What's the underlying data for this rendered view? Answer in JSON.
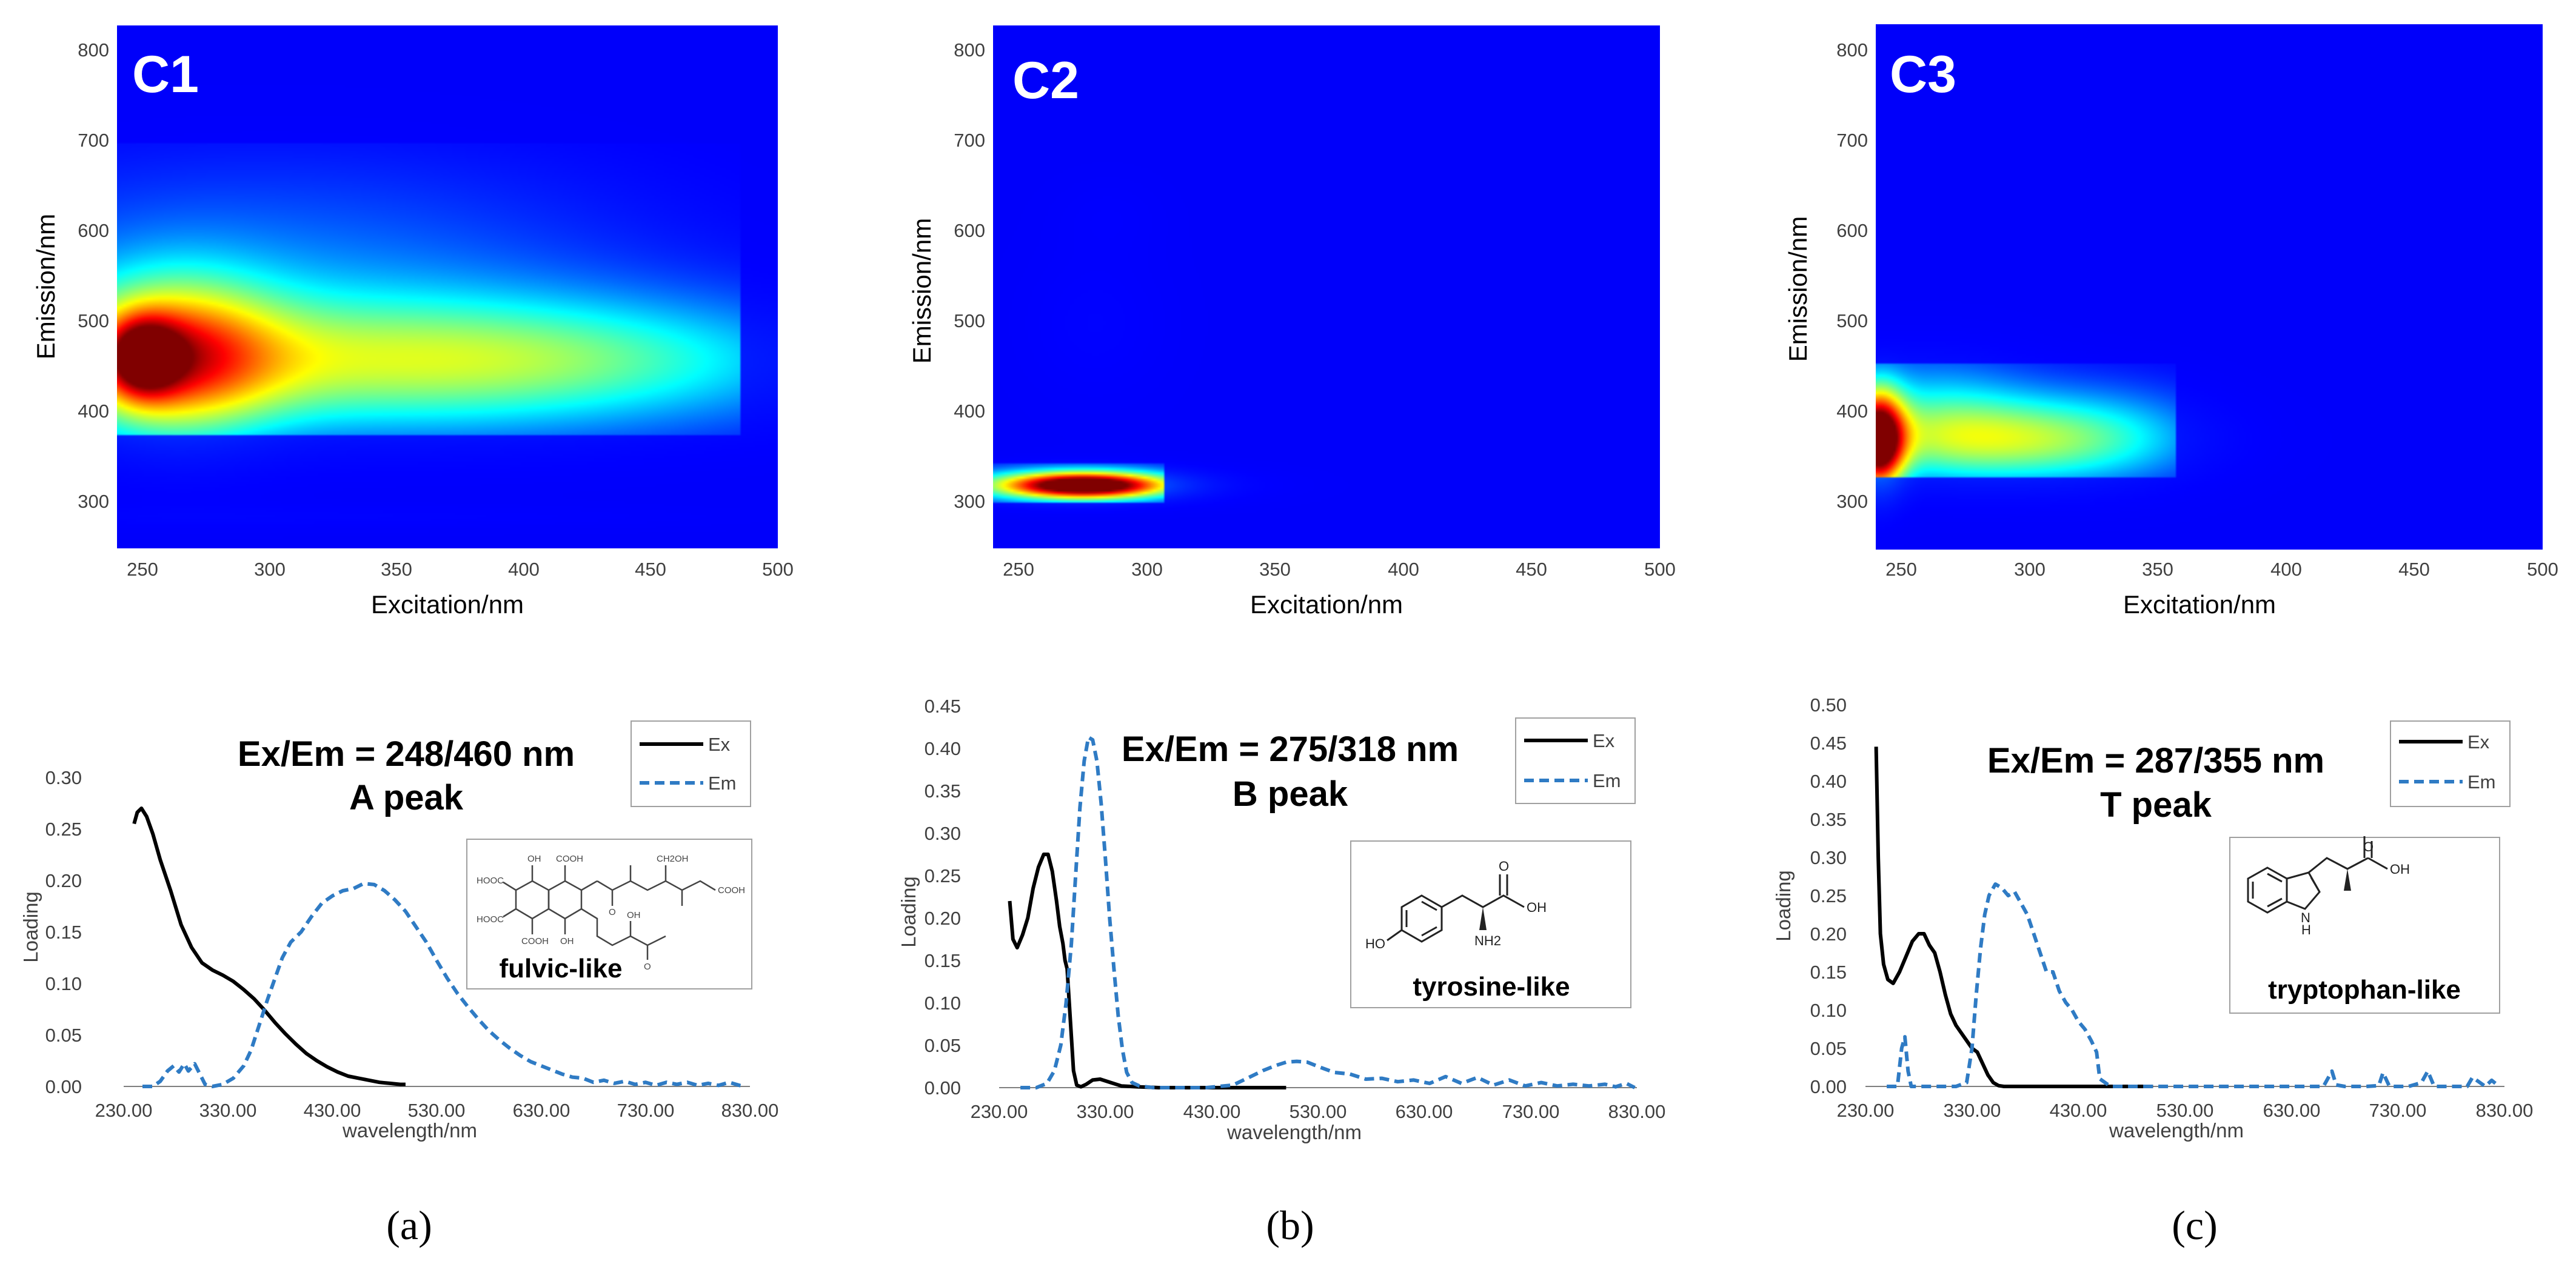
{
  "colors": {
    "heat_background": "#00008f",
    "ex_line": "#000000",
    "em_line": "#2f7bc4",
    "axis": "#7f7f7f",
    "text": "#000000",
    "tick_text": "#404040"
  },
  "panels": [
    {
      "id": "a",
      "caption": "(a)",
      "contour": {
        "label": "C1",
        "xlabel": "Excitation/nm",
        "ylabel": "Emission/nm",
        "xlim": [
          240,
          500
        ],
        "ylim": [
          250,
          830
        ],
        "xticks": [
          250,
          300,
          350,
          400,
          450,
          500
        ],
        "yticks": [
          300,
          400,
          500,
          600,
          700,
          800
        ],
        "blobs": [
          {
            "ex": 340,
            "em": 455,
            "sx": 105,
            "sy": 55,
            "amp": 0.42
          },
          {
            "ex": 420,
            "em": 460,
            "sx": 70,
            "sy": 42,
            "amp": 0.12
          },
          {
            "ex": 262,
            "em": 462,
            "sx": 28,
            "sy": 62,
            "amp": 0.55
          },
          {
            "ex": 250,
            "em": 462,
            "sx": 10,
            "sy": 30,
            "amp": 0.5
          },
          {
            "ex": 300,
            "em": 560,
            "sx": 90,
            "sy": 80,
            "amp": 0.12
          },
          {
            "ex": 300,
            "em": 285,
            "sx": 120,
            "sy": 10,
            "amp": 0.05
          }
        ],
        "em_cut": [
          375,
          700
        ],
        "ex_cut": 485
      },
      "loading": {
        "title_line1": "Ex/Em = 248/460 nm",
        "title_line2": "A peak",
        "structure_label": "fulvic-like",
        "structure_subs": [
          "OH",
          "COOH",
          "CH2OH",
          "HOOC",
          "HOOC",
          "COOH",
          "COOH",
          "OH",
          "OH",
          "O",
          "O"
        ],
        "xlabel": "wavelength/nm",
        "ylabel": "Loading",
        "xlim": [
          230,
          830
        ],
        "ylim": [
          0,
          0.3
        ],
        "xticks": [
          "230.00",
          "330.00",
          "430.00",
          "530.00",
          "630.00",
          "730.00",
          "830.00"
        ],
        "yticks": [
          "0.00",
          "0.05",
          "0.10",
          "0.15",
          "0.20",
          "0.25",
          "0.30"
        ],
        "legend": [
          "Ex",
          "Em"
        ],
        "chart_data": {
          "type": "line",
          "series": [
            {
              "name": "Ex",
              "x": [
                240,
                243,
                247,
                252,
                258,
                265,
                275,
                285,
                295,
                305,
                315,
                325,
                335,
                345,
                355,
                365,
                375,
                385,
                395,
                405,
                415,
                425,
                435,
                445,
                455,
                465,
                475,
                485,
                495,
                500
              ],
              "y": [
                0.255,
                0.266,
                0.27,
                0.262,
                0.245,
                0.22,
                0.19,
                0.157,
                0.135,
                0.12,
                0.113,
                0.108,
                0.102,
                0.094,
                0.085,
                0.074,
                0.062,
                0.051,
                0.041,
                0.032,
                0.025,
                0.019,
                0.014,
                0.01,
                0.008,
                0.006,
                0.004,
                0.003,
                0.002,
                0.002
              ]
            },
            {
              "name": "Em",
              "x": [
                248,
                258,
                265,
                272,
                278,
                283,
                288,
                292,
                298,
                303,
                308,
                315,
                325,
                335,
                345,
                352,
                360,
                368,
                375,
                382,
                390,
                400,
                410,
                420,
                430,
                440,
                450,
                460,
                470,
                480,
                490,
                500,
                510,
                520,
                530,
                540,
                550,
                560,
                570,
                580,
                590,
                600,
                610,
                620,
                630,
                640,
                650,
                660,
                670,
                680,
                690,
                700,
                710,
                720,
                730,
                740,
                750,
                760,
                770,
                780,
                790,
                800,
                810,
                820,
                825
              ],
              "y": [
                0.0,
                0.0,
                0.005,
                0.015,
                0.02,
                0.014,
                0.022,
                0.015,
                0.022,
                0.012,
                0.002,
                0.0,
                0.002,
                0.008,
                0.02,
                0.035,
                0.06,
                0.085,
                0.105,
                0.125,
                0.14,
                0.15,
                0.165,
                0.178,
                0.185,
                0.19,
                0.192,
                0.197,
                0.196,
                0.19,
                0.181,
                0.17,
                0.155,
                0.14,
                0.122,
                0.105,
                0.09,
                0.077,
                0.065,
                0.054,
                0.045,
                0.037,
                0.03,
                0.024,
                0.02,
                0.016,
                0.012,
                0.009,
                0.008,
                0.004,
                0.006,
                0.003,
                0.005,
                0.002,
                0.004,
                0.001,
                0.004,
                0.002,
                0.004,
                0.001,
                0.003,
                0.001,
                0.004,
                0.001,
                0.0
              ]
            }
          ]
        }
      }
    },
    {
      "id": "b",
      "caption": "(b)",
      "contour": {
        "label": "C2",
        "xlabel": "Excitation/nm",
        "ylabel": "Emission/nm",
        "xlim": [
          240,
          500
        ],
        "ylim": [
          250,
          830
        ],
        "xticks": [
          250,
          300,
          350,
          400,
          450,
          500
        ],
        "yticks": [
          300,
          400,
          500,
          600,
          700,
          800
        ],
        "blobs": [
          {
            "ex": 276,
            "em": 320,
            "sx": 22,
            "sy": 10,
            "amp": 1.0
          },
          {
            "ex": 270,
            "em": 320,
            "sx": 38,
            "sy": 14,
            "amp": 0.28
          },
          {
            "ex": 280,
            "em": 500,
            "sx": 20,
            "sy": 60,
            "amp": 0.05
          },
          {
            "ex": 285,
            "em": 620,
            "sx": 15,
            "sy": 30,
            "amp": 0.03
          }
        ],
        "em_cut": [
          300,
          345
        ],
        "ex_cut": 307
      },
      "loading": {
        "title_line1": "Ex/Em = 275/318 nm",
        "title_line2": "B peak",
        "structure_label": "tyrosine-like",
        "structure_subs": [
          "O",
          "OH",
          "NH2",
          "HO"
        ],
        "xlabel": "wavelength/nm",
        "ylabel": "Loading",
        "xlim": [
          230,
          830
        ],
        "ylim": [
          0,
          0.45
        ],
        "xticks": [
          "230.00",
          "330.00",
          "430.00",
          "530.00",
          "630.00",
          "730.00",
          "830.00"
        ],
        "yticks": [
          "0.00",
          "0.05",
          "0.10",
          "0.15",
          "0.20",
          "0.25",
          "0.30",
          "0.35",
          "0.40",
          "0.45"
        ],
        "legend": [
          "Ex",
          "Em"
        ],
        "chart_data": {
          "type": "line",
          "series": [
            {
              "name": "Ex",
              "x": [
                240,
                243,
                247,
                252,
                257,
                262,
                267,
                272,
                276,
                280,
                284,
                287,
                290,
                292,
                294,
                296,
                298,
                300,
                303,
                307,
                312,
                318,
                325,
                335,
                345,
                360,
                380,
                420,
                480,
                500
              ],
              "y": [
                0.22,
                0.175,
                0.165,
                0.18,
                0.2,
                0.235,
                0.26,
                0.275,
                0.275,
                0.255,
                0.22,
                0.19,
                0.17,
                0.15,
                0.14,
                0.1,
                0.06,
                0.02,
                0.003,
                0.001,
                0.004,
                0.009,
                0.01,
                0.006,
                0.002,
                0.001,
                0.0,
                0.0,
                0.0,
                0.0
              ]
            },
            {
              "name": "Em",
              "x": [
                250,
                265,
                275,
                282,
                288,
                293,
                298,
                302,
                306,
                310,
                314,
                318,
                322,
                326,
                330,
                334,
                338,
                342,
                346,
                350,
                355,
                362,
                375,
                400,
                425,
                450,
                465,
                478,
                490,
                500,
                510,
                520,
                530,
                545,
                560,
                575,
                590,
                605,
                620,
                635,
                650,
                665,
                680,
                695,
                710,
                725,
                740,
                755,
                770,
                785,
                800,
                810,
                820,
                828
              ],
              "y": [
                0.0,
                0.0,
                0.005,
                0.02,
                0.05,
                0.1,
                0.17,
                0.25,
                0.33,
                0.385,
                0.413,
                0.41,
                0.385,
                0.335,
                0.27,
                0.2,
                0.14,
                0.085,
                0.045,
                0.018,
                0.006,
                0.002,
                0.0,
                0.0,
                0.0,
                0.003,
                0.012,
                0.02,
                0.026,
                0.03,
                0.031,
                0.03,
                0.025,
                0.018,
                0.016,
                0.01,
                0.011,
                0.007,
                0.009,
                0.005,
                0.013,
                0.005,
                0.012,
                0.003,
                0.009,
                0.002,
                0.006,
                0.002,
                0.004,
                0.002,
                0.004,
                0.001,
                0.005,
                0.0
              ]
            }
          ]
        }
      }
    },
    {
      "id": "c",
      "caption": "(c)",
      "contour": {
        "label": "C3",
        "xlabel": "Excitation/nm",
        "ylabel": "Emission/nm",
        "xlim": [
          240,
          500
        ],
        "ylim": [
          250,
          830
        ],
        "xticks": [
          250,
          300,
          350,
          400,
          450,
          500
        ],
        "yticks": [
          300,
          400,
          500,
          600,
          700,
          800
        ],
        "blobs": [
          {
            "ex": 241,
            "em": 370,
            "sx": 7,
            "sy": 38,
            "amp": 1.0
          },
          {
            "ex": 290,
            "em": 370,
            "sx": 42,
            "sy": 32,
            "amp": 0.4
          },
          {
            "ex": 262,
            "em": 400,
            "sx": 28,
            "sy": 45,
            "amp": 0.22
          },
          {
            "ex": 330,
            "em": 380,
            "sx": 28,
            "sy": 40,
            "amp": 0.12
          }
        ],
        "em_cut": [
          330,
          455
        ],
        "ex_cut": 357
      },
      "loading": {
        "title_line1": "Ex/Em = 287/355 nm",
        "title_line2": "T peak",
        "structure_label": "tryptophan-like",
        "structure_subs": [
          "O",
          "OH",
          "N",
          "H"
        ],
        "xlabel": "wavelength/nm",
        "ylabel": "Loading",
        "xlim": [
          230,
          830
        ],
        "ylim": [
          0,
          0.5
        ],
        "xticks": [
          "230.00",
          "330.00",
          "430.00",
          "530.00",
          "630.00",
          "730.00",
          "830.00"
        ],
        "yticks": [
          "0.00",
          "0.05",
          "0.10",
          "0.15",
          "0.20",
          "0.25",
          "0.30",
          "0.35",
          "0.40",
          "0.45",
          "0.50"
        ],
        "legend": [
          "Ex",
          "Em"
        ],
        "chart_data": {
          "type": "line",
          "series": [
            {
              "name": "Ex",
              "x": [
                240,
                242,
                244,
                247,
                251,
                256,
                262,
                268,
                274,
                280,
                285,
                290,
                295,
                300,
                305,
                310,
                315,
                320,
                325,
                330,
                335,
                340,
                345,
                350,
                355,
                360,
                365,
                380,
                420,
                470,
                500
              ],
              "y": [
                0.445,
                0.3,
                0.2,
                0.16,
                0.14,
                0.135,
                0.15,
                0.17,
                0.19,
                0.2,
                0.2,
                0.185,
                0.175,
                0.15,
                0.12,
                0.095,
                0.08,
                0.07,
                0.06,
                0.05,
                0.045,
                0.03,
                0.015,
                0.005,
                0.001,
                0.0,
                0.0,
                0.0,
                0.0,
                0.0,
                0.0
              ]
            },
            {
              "name": "Em",
              "x": [
                250,
                260,
                264,
                267,
                270,
                273,
                277,
                285,
                300,
                315,
                325,
                330,
                334,
                338,
                342,
                346,
                352,
                358,
                364,
                370,
                376,
                382,
                388,
                394,
                400,
                406,
                412,
                418,
                424,
                430,
                436,
                442,
                447,
                450,
                460,
                500,
                560,
                620,
                660,
                668,
                672,
                680,
                700,
                712,
                716,
                722,
                740,
                752,
                758,
                764,
                780,
                795,
                800,
                812,
                818,
                825
              ],
              "y": [
                0.0,
                0.0,
                0.05,
                0.065,
                0.02,
                0.0,
                0.0,
                0.0,
                0.0,
                0.0,
                0.005,
                0.05,
                0.12,
                0.18,
                0.225,
                0.25,
                0.265,
                0.26,
                0.25,
                0.255,
                0.24,
                0.225,
                0.2,
                0.175,
                0.15,
                0.15,
                0.125,
                0.11,
                0.1,
                0.085,
                0.075,
                0.06,
                0.045,
                0.01,
                0.0,
                0.0,
                0.0,
                0.0,
                0.0,
                0.02,
                0.002,
                0.0,
                0.0,
                0.001,
                0.018,
                0.0,
                0.0,
                0.005,
                0.02,
                0.0,
                0.0,
                0.0,
                0.012,
                0.0,
                0.008,
                0.0
              ]
            }
          ]
        }
      }
    }
  ]
}
